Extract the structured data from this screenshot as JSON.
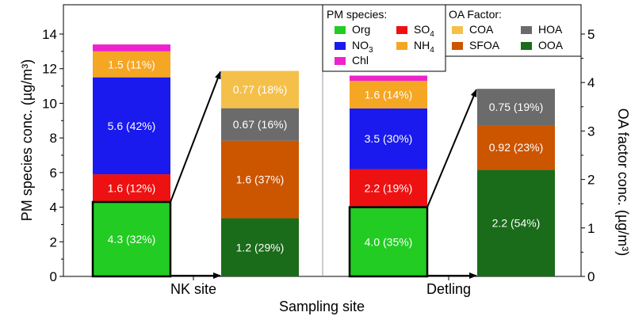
{
  "chart_data": {
    "type": "bar",
    "stacked": true,
    "xlabel": "Sampling site",
    "ylabel_left": "PM species conc. (µg/m³)",
    "ylabel_right": "OA factor conc. (µg/m³)",
    "ylim_left": [
      0,
      14
    ],
    "ylim_right": [
      0,
      5
    ],
    "left_ticks": [
      "0",
      "2",
      "4",
      "6",
      "8",
      "10",
      "12",
      "14"
    ],
    "right_ticks": [
      "0",
      "1",
      "2",
      "3",
      "4",
      "5"
    ],
    "categories": [
      "NK site",
      "Detling"
    ],
    "pm_bars": [
      {
        "site": "NK site",
        "segments": [
          {
            "species": "Org",
            "value": 4.3,
            "label": "4.3 (32%)",
            "color": "#22cc22"
          },
          {
            "species": "SO4",
            "value": 1.6,
            "label": "1.6 (12%)",
            "color": "#ee1111"
          },
          {
            "species": "NO3",
            "value": 5.6,
            "label": "5.6 (42%)",
            "color": "#1a1aee"
          },
          {
            "species": "NH4",
            "value": 1.5,
            "label": "1.5 (11%)",
            "color": "#f5a623"
          },
          {
            "species": "Chl",
            "value": 0.4,
            "label": "",
            "color": "#ee22cc"
          }
        ]
      },
      {
        "site": "Detling",
        "segments": [
          {
            "species": "Org",
            "value": 4.0,
            "label": "4.0 (35%)",
            "color": "#22cc22"
          },
          {
            "species": "SO4",
            "value": 2.2,
            "label": "2.2 (19%)",
            "color": "#ee1111"
          },
          {
            "species": "NO3",
            "value": 3.5,
            "label": "3.5 (30%)",
            "color": "#1a1aee"
          },
          {
            "species": "NH4",
            "value": 1.6,
            "label": "1.6 (14%)",
            "color": "#f5a623"
          },
          {
            "species": "Chl",
            "value": 0.3,
            "label": "",
            "color": "#ee22cc"
          }
        ]
      }
    ],
    "oa_bars": [
      {
        "site": "NK site",
        "segments": [
          {
            "factor": "OOA",
            "value": 1.2,
            "label": "1.2 (29%)",
            "color": "#1a6b1a"
          },
          {
            "factor": "SFOA",
            "value": 1.6,
            "label": "1.6 (37%)",
            "color": "#cc5500"
          },
          {
            "factor": "HOA",
            "value": 0.67,
            "label": "0.67 (16%)",
            "color": "#6b6b6b"
          },
          {
            "factor": "COA",
            "value": 0.77,
            "label": "0.77 (18%)",
            "color": "#f5c04a"
          }
        ]
      },
      {
        "site": "Detling",
        "segments": [
          {
            "factor": "OOA",
            "value": 2.2,
            "label": "2.2 (54%)",
            "color": "#1a6b1a"
          },
          {
            "factor": "SFOA",
            "value": 0.92,
            "label": "0.92 (23%)",
            "color": "#cc5500"
          },
          {
            "factor": "HOA",
            "value": 0.75,
            "label": "0.75 (19%)",
            "color": "#6b6b6b"
          }
        ]
      }
    ],
    "legend_pm": {
      "title": "PM species:",
      "items": [
        {
          "key": "Org",
          "label": "Org",
          "sub": "",
          "color": "#22cc22"
        },
        {
          "key": "SO4",
          "label": "SO",
          "sub": "4",
          "color": "#ee1111"
        },
        {
          "key": "NO3",
          "label": "NO",
          "sub": "3",
          "color": "#1a1aee"
        },
        {
          "key": "NH4",
          "label": "NH",
          "sub": "4",
          "color": "#f5a623"
        },
        {
          "key": "Chl",
          "label": "Chl",
          "sub": "",
          "color": "#ee22cc"
        }
      ]
    },
    "legend_oa": {
      "title": "OA Factor:",
      "items": [
        {
          "key": "COA",
          "label": "COA",
          "color": "#f5c04a"
        },
        {
          "key": "HOA",
          "label": "HOA",
          "color": "#6b6b6b"
        },
        {
          "key": "SFOA",
          "label": "SFOA",
          "color": "#cc5500"
        },
        {
          "key": "OOA",
          "label": "OOA",
          "color": "#1a6b1a"
        }
      ]
    }
  }
}
